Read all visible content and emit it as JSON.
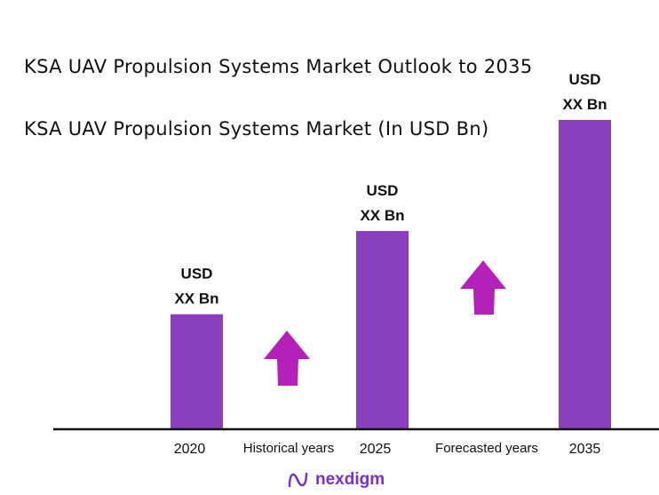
{
  "chart_data": {
    "type": "bar",
    "title": "KSA UAV Propulsion Systems Market Outlook to 2035",
    "subtitle": "KSA UAV Propulsion Systems Market (In USD Bn)",
    "categories": [
      "2020",
      "2025",
      "2035"
    ],
    "data_labels": [
      "USD XX Bn",
      "USD XX Bn",
      "USD XX Bn"
    ],
    "relative_heights": [
      0.37,
      0.64,
      1.0
    ],
    "period_labels": [
      "Historical years",
      "Forecasted years"
    ],
    "bar_color": "#8a40bc",
    "arrow_color": "#b321b9",
    "trend_arrows": [
      "up",
      "up"
    ],
    "grid": false
  },
  "logo": {
    "text": "nexdigm"
  }
}
